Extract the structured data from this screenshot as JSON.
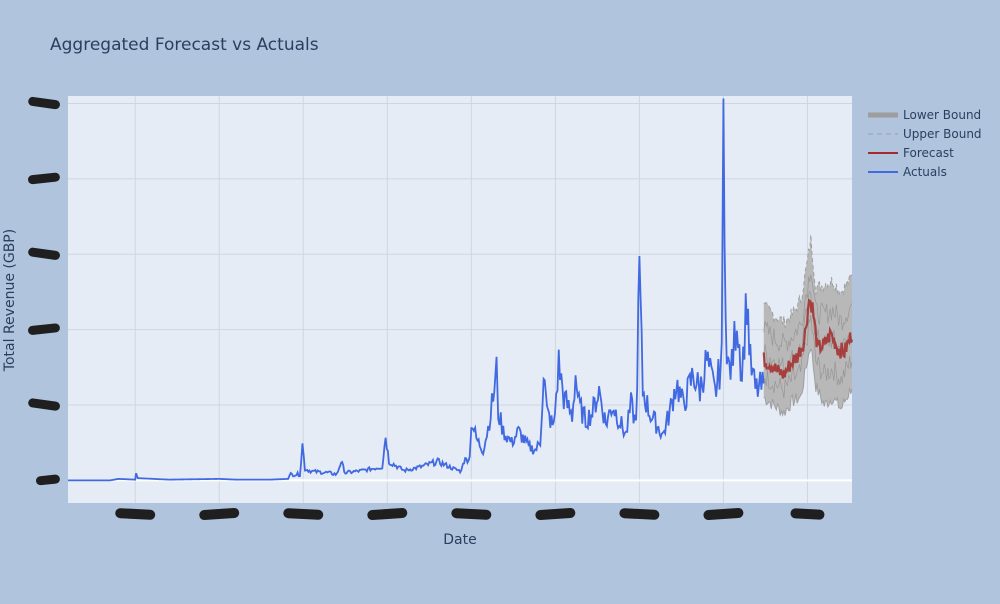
{
  "chart_data": {
    "type": "line",
    "title": "Aggregated Forecast vs Actuals",
    "xlabel": "Date",
    "ylabel": "Total Revenue (GBP)",
    "ylim": [
      -0.3,
      5.1
    ],
    "xlim": [
      0,
      933
    ],
    "grid": true,
    "legend_position": "top-right",
    "x_ticks": [
      80,
      180,
      280,
      380,
      480,
      580,
      680,
      780,
      880
    ],
    "y_ticks": [
      0,
      1,
      2,
      3,
      4,
      5
    ],
    "tick_labels_redacted": true,
    "zero_line": true,
    "colors": {
      "actuals": "#4169e1",
      "forecast": "#a52a2a",
      "bounds": "#9e9e9e",
      "plot_bg": "#e5ecf6",
      "page_bg": "#b0c4de",
      "grid": "#ffffff",
      "zero_line": "#ffffff"
    },
    "series": [
      {
        "name": "Lower Bound",
        "kind": "band",
        "x_range": [
          828,
          933
        ],
        "note": "lower edge of forecast interval",
        "points": [
          [
            828,
            1.1
          ],
          [
            840,
            1.0
          ],
          [
            852,
            0.9
          ],
          [
            862,
            1.05
          ],
          [
            872,
            1.1
          ],
          [
            880,
            1.6
          ],
          [
            884,
            1.8
          ],
          [
            890,
            1.25
          ],
          [
            900,
            1.0
          ],
          [
            910,
            1.1
          ],
          [
            920,
            0.95
          ],
          [
            933,
            1.25
          ]
        ]
      },
      {
        "name": "Upper Bound",
        "kind": "band",
        "x_range": [
          828,
          933
        ],
        "points": [
          [
            828,
            2.3
          ],
          [
            840,
            2.2
          ],
          [
            852,
            2.1
          ],
          [
            862,
            2.2
          ],
          [
            872,
            2.4
          ],
          [
            880,
            2.9
          ],
          [
            884,
            3.2
          ],
          [
            890,
            2.55
          ],
          [
            900,
            2.6
          ],
          [
            910,
            2.65
          ],
          [
            920,
            2.5
          ],
          [
            933,
            2.7
          ]
        ]
      },
      {
        "name": "Forecast",
        "kind": "line",
        "x_range": [
          828,
          933
        ],
        "points": [
          [
            828,
            1.6
          ],
          [
            836,
            1.55
          ],
          [
            844,
            1.45
          ],
          [
            852,
            1.4
          ],
          [
            860,
            1.55
          ],
          [
            868,
            1.65
          ],
          [
            876,
            1.85
          ],
          [
            882,
            2.4
          ],
          [
            886,
            2.3
          ],
          [
            892,
            1.75
          ],
          [
            900,
            1.8
          ],
          [
            908,
            1.95
          ],
          [
            916,
            1.75
          ],
          [
            924,
            1.7
          ],
          [
            933,
            1.95
          ]
        ]
      },
      {
        "name": "Actuals",
        "kind": "line",
        "x_range": [
          0,
          828
        ],
        "points": [
          [
            0,
            0
          ],
          [
            50,
            0
          ],
          [
            60,
            0.02
          ],
          [
            80,
            0.01
          ],
          [
            81,
            0.12
          ],
          [
            83,
            0.03
          ],
          [
            120,
            0.01
          ],
          [
            180,
            0.02
          ],
          [
            200,
            0.01
          ],
          [
            240,
            0.01
          ],
          [
            262,
            0.02
          ],
          [
            265,
            0.08
          ],
          [
            276,
            0.08
          ],
          [
            279,
            0.48
          ],
          [
            282,
            0.15
          ],
          [
            290,
            0.12
          ],
          [
            310,
            0.1
          ],
          [
            320,
            0.08
          ],
          [
            325,
            0.25
          ],
          [
            330,
            0.1
          ],
          [
            350,
            0.13
          ],
          [
            374,
            0.18
          ],
          [
            378,
            0.6
          ],
          [
            382,
            0.25
          ],
          [
            400,
            0.13
          ],
          [
            420,
            0.18
          ],
          [
            440,
            0.25
          ],
          [
            460,
            0.15
          ],
          [
            468,
            0.12
          ],
          [
            470,
            0.25
          ],
          [
            478,
            0.3
          ],
          [
            480,
            0.8
          ],
          [
            486,
            0.55
          ],
          [
            494,
            0.4
          ],
          [
            500,
            0.7
          ],
          [
            506,
            1.1
          ],
          [
            510,
            1.45
          ],
          [
            512,
            0.9
          ],
          [
            518,
            0.65
          ],
          [
            528,
            0.5
          ],
          [
            536,
            0.65
          ],
          [
            548,
            0.45
          ],
          [
            556,
            0.4
          ],
          [
            562,
            0.5
          ],
          [
            566,
            1.45
          ],
          [
            570,
            0.9
          ],
          [
            578,
            0.7
          ],
          [
            584,
            1.55
          ],
          [
            590,
            1.1
          ],
          [
            600,
            0.85
          ],
          [
            604,
            1.4
          ],
          [
            608,
            1.0
          ],
          [
            616,
            0.8
          ],
          [
            624,
            0.9
          ],
          [
            632,
            1.2
          ],
          [
            640,
            0.75
          ],
          [
            648,
            1.0
          ],
          [
            656,
            0.8
          ],
          [
            664,
            0.6
          ],
          [
            670,
            1.0
          ],
          [
            676,
            0.75
          ],
          [
            680,
            2.8
          ],
          [
            684,
            1.2
          ],
          [
            692,
            0.9
          ],
          [
            700,
            0.75
          ],
          [
            708,
            0.6
          ],
          [
            716,
            0.9
          ],
          [
            724,
            1.3
          ],
          [
            732,
            1.0
          ],
          [
            744,
            1.4
          ],
          [
            752,
            1.2
          ],
          [
            760,
            1.6
          ],
          [
            770,
            1.15
          ],
          [
            778,
            1.6
          ],
          [
            780,
            4.8
          ],
          [
            784,
            1.5
          ],
          [
            790,
            1.5
          ],
          [
            796,
            2.2
          ],
          [
            802,
            1.4
          ],
          [
            808,
            2.45
          ],
          [
            812,
            1.55
          ],
          [
            818,
            1.2
          ],
          [
            828,
            1.25
          ]
        ]
      }
    ]
  }
}
